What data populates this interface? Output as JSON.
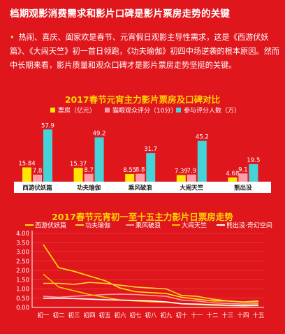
{
  "headline": "档期观影消费需求和影片口碑是影片票房走势的关键",
  "paragraph": "热闹、喜庆、阖家欢是春节、元宵假日观影主导性需求，这是《西游伏妖篇》、《大闹天竺》初一首日领跑，《功夫瑜伽》初四中场逆袭的根本原因。然而中长期来看，影片质量和观众口碑才是影片票房走势坚挺的关键。",
  "colors": {
    "background": "#e0161d",
    "title_yellow": "#ffd400",
    "bar_yellow": "#ffe600",
    "bar_pink": "#ff9da6",
    "bar_cyan": "#46d3d8"
  },
  "chart_data": [
    {
      "type": "bar",
      "title": "2017春节元宵主力影片票房及口碑对比",
      "categories": [
        "西游伏妖篇",
        "功夫瑜伽",
        "乘风破浪",
        "大闹天竺",
        "熊出没"
      ],
      "series": [
        {
          "name": "票房（亿元）",
          "values": [
            15.84,
            15.37,
            8.55,
            7.39,
            4.68
          ]
        },
        {
          "name": "猫眼观众评分（10分）",
          "values": [
            7.8,
            8.7,
            8.8,
            7.9,
            9.1
          ]
        },
        {
          "name": "参与评分人数（万）",
          "values": [
            57.9,
            49.2,
            31.7,
            45.2,
            19.5
          ]
        }
      ],
      "ylim": [
        0,
        62
      ],
      "legend": "top"
    },
    {
      "type": "line",
      "title": "2017春节元宵初一至十五主力影片日票房走势",
      "x": [
        "初一",
        "初二",
        "初三",
        "初四",
        "初五",
        "初六",
        "初七",
        "初八",
        "初九",
        "初十",
        "十一",
        "十二",
        "十三",
        "十四",
        "十五"
      ],
      "yticks": [
        "0.00",
        "0.50",
        "1.00",
        "1.50",
        "2.00",
        "2.50",
        "3.00",
        "3.50",
        "4.00"
      ],
      "ylim": [
        0,
        4
      ],
      "legend": "top",
      "series": [
        {
          "name": "西游伏妖篇",
          "color": "#ffe600",
          "values": [
            3.4,
            2.15,
            1.95,
            1.7,
            1.45,
            1.05,
            0.85,
            0.8,
            0.75,
            0.55,
            0.45,
            0.35,
            0.35,
            0.28,
            0.3
          ]
        },
        {
          "name": "功夫瑜伽",
          "color": "#ffd23a",
          "values": [
            1.3,
            1.3,
            1.25,
            1.35,
            1.3,
            1.2,
            1.1,
            1.05,
            1.0,
            0.65,
            0.6,
            0.45,
            0.35,
            0.3,
            0.35
          ]
        },
        {
          "name": "乘风破浪",
          "color": "#ff9da6",
          "values": [
            0.6,
            0.55,
            0.6,
            0.65,
            0.7,
            0.72,
            0.7,
            0.65,
            0.6,
            0.4,
            0.35,
            0.25,
            0.22,
            0.18,
            0.2
          ]
        },
        {
          "name": "大闹天竺",
          "color": "#f7c400",
          "values": [
            1.8,
            1.1,
            0.9,
            0.7,
            0.55,
            0.4,
            0.35,
            0.3,
            0.28,
            0.2,
            0.15,
            0.12,
            0.1,
            0.08,
            0.1
          ]
        },
        {
          "name": "熊出没·奇幻空间",
          "color": "#ffffff",
          "values": [
            0.5,
            0.5,
            0.48,
            0.45,
            0.42,
            0.4,
            0.38,
            0.35,
            0.3,
            0.2,
            0.18,
            0.15,
            0.12,
            0.1,
            0.12
          ]
        }
      ]
    }
  ]
}
